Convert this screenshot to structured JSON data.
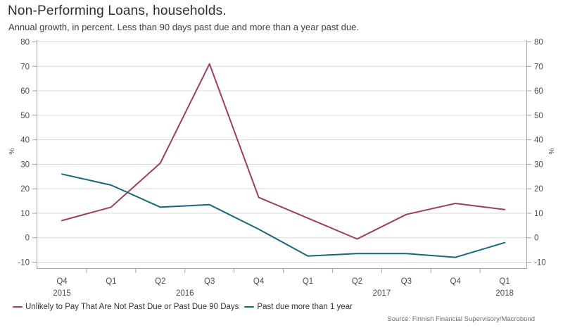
{
  "header": {
    "title": "Non-Performing Loans, households.",
    "subtitle": "Annual growth, in percent. Less than 90 days past due and more than a year past due."
  },
  "chart_data": {
    "type": "line",
    "categories": [
      "Q4 2015",
      "Q1 2016",
      "Q2 2016",
      "Q3 2016",
      "Q4 2016",
      "Q1 2017",
      "Q2 2017",
      "Q3 2017",
      "Q4 2017",
      "Q1 2018"
    ],
    "quarter_labels": [
      "Q4",
      "Q1",
      "Q2",
      "Q3",
      "Q4",
      "Q1",
      "Q2",
      "Q3",
      "Q4",
      "Q1"
    ],
    "year_labels": [
      {
        "label": "2015",
        "x_index": 0
      },
      {
        "label": "2016",
        "x_index": 2.5
      },
      {
        "label": "2017",
        "x_index": 6.5
      },
      {
        "label": "2018",
        "x_index": 9
      }
    ],
    "series": [
      {
        "name": "Unlikely to Pay That Are Not Past Due or Past Due 90 Days",
        "color": "#9e3d63",
        "values": [
          7,
          12.5,
          30.5,
          71,
          16.5,
          8,
          -0.5,
          9.5,
          14,
          11.5
        ]
      },
      {
        "name": "Past due more than 1 year",
        "color": "#15697a",
        "values": [
          26,
          21.5,
          12.5,
          13.5,
          3.5,
          -7.5,
          -6.5,
          -6.5,
          -8,
          -2
        ]
      }
    ],
    "ylabel_left": "%",
    "ylabel_right": "%",
    "ylim": [
      -10,
      80
    ],
    "yticks": [
      80,
      70,
      60,
      50,
      40,
      30,
      20,
      10,
      0,
      -10
    ],
    "grid": true,
    "legend_position": "bottom-left",
    "colors": {
      "gridline": "#dcdcdc",
      "axis": "#a3a3a3",
      "tick_text": "#4d4d4d"
    }
  },
  "footer": {
    "source": "Source: Finnish Financial Supervisory/Macrobond"
  }
}
